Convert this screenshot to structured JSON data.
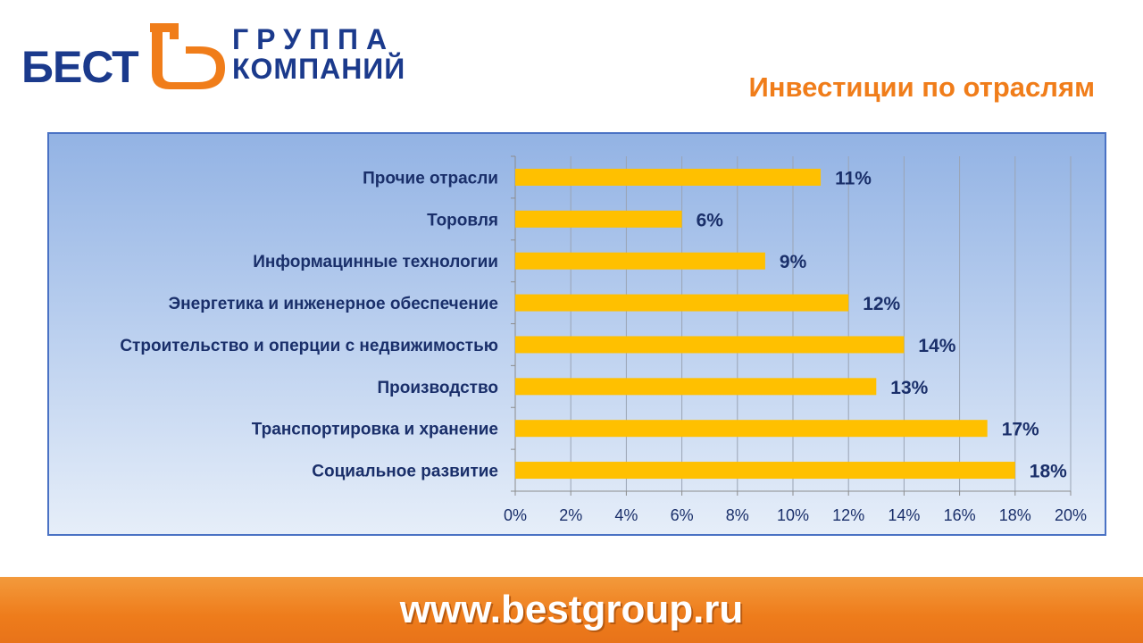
{
  "logo": {
    "brand": "БЕСТ",
    "line1": "ГРУППА",
    "line2": "КОМПАНИЙ"
  },
  "title": "Инвестиции по отраслям",
  "footer": {
    "url": "www.bestgroup.ru"
  },
  "colors": {
    "bar": "#ffc000",
    "title": "#f07d1a",
    "brand": "#1b3a8c",
    "footer": "#ee7c1b"
  },
  "chart_data": {
    "type": "bar",
    "orientation": "horizontal",
    "categories": [
      "Прочие отрасли",
      "Торовля",
      "Информацинные технологии",
      "Энергетика и инженерное обеспечение",
      "Строительство и оперции с недвижимостью",
      "Производство",
      "Транспортировка и хранение",
      "Социальное развитие"
    ],
    "values": [
      11,
      6,
      9,
      12,
      14,
      13,
      17,
      18
    ],
    "value_labels": [
      "11%",
      "6%",
      "9%",
      "12%",
      "14%",
      "13%",
      "17%",
      "18%"
    ],
    "xlim": [
      0,
      20
    ],
    "ticks": [
      0,
      2,
      4,
      6,
      8,
      10,
      12,
      14,
      16,
      18,
      20
    ],
    "tick_labels": [
      "0%",
      "2%",
      "4%",
      "6%",
      "8%",
      "10%",
      "12%",
      "14%",
      "16%",
      "18%",
      "20%"
    ],
    "grid": true,
    "legend": "none",
    "title": "",
    "xlabel": "",
    "ylabel": ""
  }
}
